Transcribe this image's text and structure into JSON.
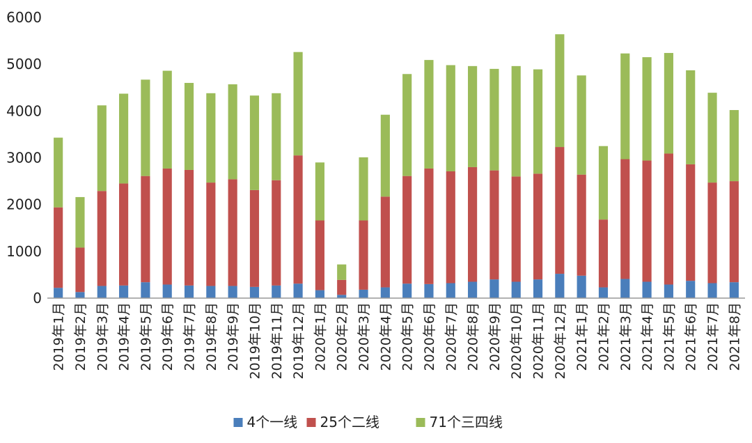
{
  "chart_data": {
    "type": "bar",
    "stacked": true,
    "title": "",
    "xlabel": "",
    "ylabel": "",
    "ylim": [
      0,
      6000
    ],
    "yticks": [
      0,
      1000,
      2000,
      3000,
      4000,
      5000,
      6000
    ],
    "ytick_labels": [
      "0",
      "1000",
      "2000",
      "3000",
      "4000",
      "5000",
      "6000"
    ],
    "grid": false,
    "legend_position": "bottom",
    "categories": [
      "2019年1月",
      "2019年2月",
      "2019年3月",
      "2019年4月",
      "2019年5月",
      "2019年6月",
      "2019年7月",
      "2019年8月",
      "2019年9月",
      "2019年10月",
      "2019年11月",
      "2019年12月",
      "2020年1月",
      "2020年2月",
      "2020年3月",
      "2020年4月",
      "2020年5月",
      "2020年6月",
      "2020年7月",
      "2020年8月",
      "2020年9月",
      "2020年10月",
      "2020年11月",
      "2020年12月",
      "2021年1月",
      "2021年2月",
      "2021年3月",
      "2021年4月",
      "2021年5月",
      "2021年6月",
      "2021年7月",
      "2021年8月"
    ],
    "series": [
      {
        "name": "4个一线",
        "color": "#4a7ebb",
        "values": [
          220,
          130,
          260,
          270,
          340,
          290,
          270,
          260,
          260,
          240,
          270,
          310,
          170,
          70,
          180,
          230,
          310,
          300,
          320,
          350,
          400,
          350,
          400,
          520,
          480,
          230,
          410,
          350,
          290,
          370,
          320,
          340
        ]
      },
      {
        "name": "25个二线",
        "color": "#c0504d",
        "values": [
          1720,
          950,
          2030,
          2180,
          2270,
          2480,
          2470,
          2210,
          2280,
          2070,
          2250,
          2740,
          1490,
          320,
          1480,
          1940,
          2300,
          2470,
          2390,
          2450,
          2330,
          2250,
          2260,
          2710,
          2160,
          1450,
          2560,
          2590,
          2800,
          2490,
          2150,
          2160
        ]
      },
      {
        "name": "71个三四线",
        "color": "#9bbb59",
        "values": [
          1490,
          1080,
          1830,
          1920,
          2060,
          2090,
          1860,
          1910,
          2030,
          2020,
          1860,
          2210,
          1240,
          330,
          1350,
          1750,
          2180,
          2320,
          2270,
          2160,
          2170,
          2360,
          2230,
          2410,
          2120,
          1570,
          2260,
          2210,
          2150,
          2010,
          1920,
          1520
        ]
      }
    ]
  }
}
